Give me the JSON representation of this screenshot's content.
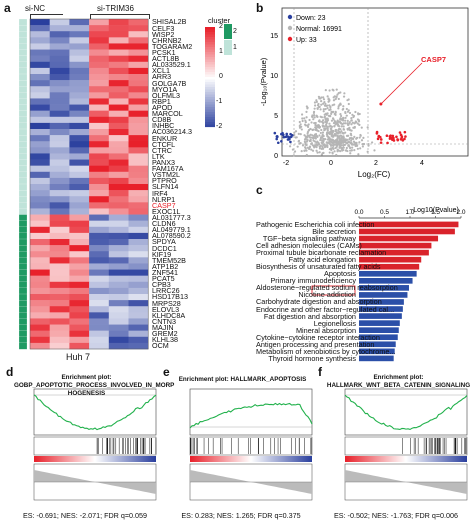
{
  "panels": {
    "a": "a",
    "b": "b",
    "c": "c",
    "d": "d",
    "e": "e",
    "f": "f"
  },
  "heatmap": {
    "col_groups": [
      "si-NC",
      "si-TRIM36"
    ],
    "footer": "Huh 7",
    "legend_title": "cluster",
    "legend_cluster_ticks": [
      "2",
      "1"
    ],
    "colorbar_ticks": [
      "2",
      "1",
      "0",
      "-1",
      "-2"
    ],
    "colors": {
      "high": "#e8202a",
      "mid": "#ffffff",
      "low": "#2a3f9e",
      "cluster1": "#bfe3d9",
      "cluster2": "#1f9a63"
    },
    "genes": [
      "SHISAL2B",
      "CELF3",
      "WISP2",
      "CHRNB2",
      "TOGARAM2",
      "PCSK1",
      "ACTL8B",
      "AL033529.1",
      "XCL1",
      "ARR3",
      "GOLGA7B",
      "MYO1A",
      "OLFML3",
      "RBP1",
      "APOD",
      "MARCOL",
      "CD8B",
      "INHBC",
      "AC036214.3",
      "ENKUR",
      "CTCFL",
      "CTRC",
      "LTK",
      "PANX3",
      "FAM167A",
      "VSTM2L",
      "PTPRO",
      "SLFN14",
      "IRF4",
      "NLRP1",
      "CASP7",
      "EXOC1L",
      "AL031777.3",
      "CLDN6",
      "AL049779.1",
      "AL078590.2",
      "SPDYA",
      "DCDC1",
      "KIF19",
      "TMEM52B",
      "ATP1B2",
      "ZNF541",
      "PCAT5",
      "CPB3",
      "LRRC26",
      "HSD17B13",
      "MRPS28",
      "ELOVL3",
      "KLHDC8A",
      "CNTN3",
      "MAJIN",
      "GREM2",
      "KLHL38",
      "OCM"
    ],
    "highlight_gene": "CASP7"
  },
  "volcano": {
    "xlabel": "Log₂(FC)",
    "ylabel": "-Log₁₀(Pvalue)",
    "legend": [
      {
        "label": "Down: 23",
        "color": "#2a3f9e"
      },
      {
        "label": "Normal: 16991",
        "color": "#b5b5b5"
      },
      {
        "label": "Up: 33",
        "color": "#e8202a"
      }
    ],
    "annotation": "CASP7",
    "xticks": [
      "-2",
      "0",
      "2",
      "4"
    ],
    "yticks": [
      "0",
      "5",
      "10",
      "15"
    ]
  },
  "chart_data": {
    "type": "bar",
    "title": "−Log10(Pvalue)",
    "categories": [
      "Pathogenic Escherichia coli infection",
      "Bile secretion",
      "TGF−beta signaling pathway",
      "Cell adhesion molecules (CAMs)",
      "Proximal tubule bicarbonate reclamation",
      "Fatty acid elongation",
      "Biosynthesis of unsaturated fatty acids",
      "Apoptosis",
      "Primary immunodeficiency",
      "Aldosterone−regulated sodium reabsorption",
      "Nicotine addiction",
      "Carbohydrate digestion and absorption",
      "Endocrine and other factor−regulated cal...",
      "Fat digestion and absorption",
      "Legionellosis",
      "Mineral absorption",
      "Cytokine−cytokine receptor interaction",
      "Antigen processing and presentation",
      "Metabolism of xenobiotics by cytochrome...",
      "Thyroid hormone synthesis"
    ],
    "values": [
      1.95,
      1.88,
      1.55,
      1.42,
      1.37,
      1.22,
      1.18,
      1.13,
      1.05,
      0.98,
      0.95,
      0.88,
      0.86,
      0.84,
      0.8,
      0.78,
      0.76,
      0.72,
      0.7,
      0.68
    ],
    "xlim": [
      0,
      2
    ],
    "xticks": [
      "0.0",
      "0.5",
      "1.0",
      "1.5",
      "2.0"
    ],
    "colors": {
      "red": "#d9232b",
      "blue": "#2b4fa8"
    },
    "red_count": 7,
    "highlight": "Apoptosis"
  },
  "gsea": [
    {
      "title": "Enrichment plot:",
      "subtitle": "GOBP_APOPTOTIC_PROCESS_INVOLVED_IN_MORP HOGENESIS",
      "stats": "ES: -0.691; NES: -2.071; FDR q=0.059"
    },
    {
      "title": "Enrichment plot: HALLMARK_APOPTOSIS",
      "subtitle": "",
      "stats": "ES: 0.283; NES: 1.265; FDR q=0.375"
    },
    {
      "title": "Enrichment plot:",
      "subtitle": "HALLMARK_WNT_BETA_CATENIN_SIGNALING",
      "stats": "ES: -0.502; NES: -1.763; FDR q=0.006"
    }
  ]
}
